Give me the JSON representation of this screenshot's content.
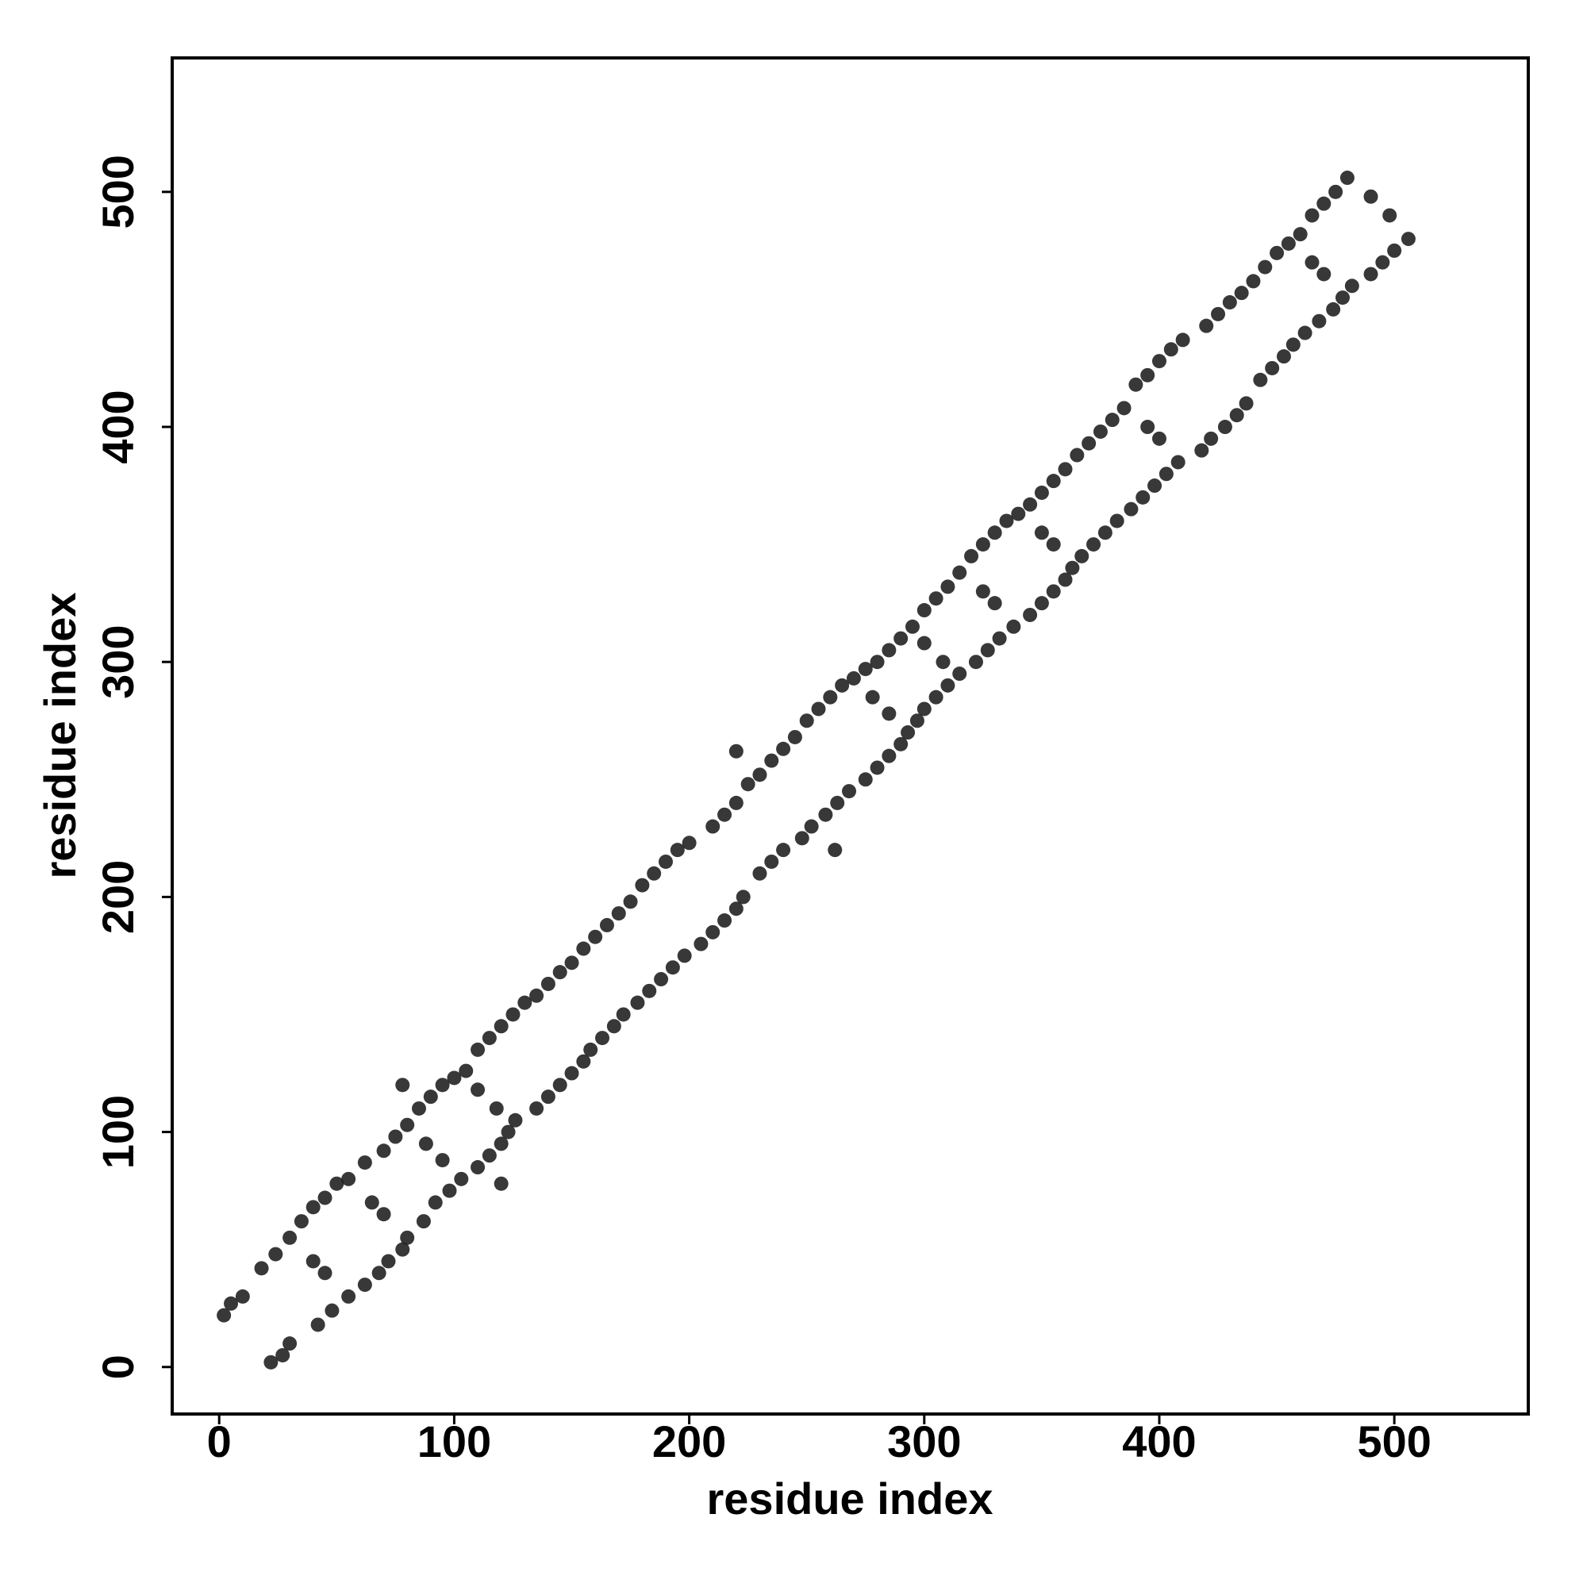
{
  "chart_data": {
    "type": "scatter",
    "xlabel": "residue index",
    "ylabel": "residue index",
    "color": "#1c1c1c",
    "xlim": [
      -20,
      557
    ],
    "ylim": [
      -20,
      557
    ],
    "xticks": [
      0,
      100,
      200,
      300,
      400,
      500
    ],
    "yticks": [
      0,
      100,
      200,
      300,
      400,
      500
    ],
    "x": [
      2,
      5,
      10,
      18,
      24,
      30,
      35,
      40,
      45,
      50,
      55,
      62,
      70,
      75,
      80,
      85,
      90,
      95,
      100,
      105,
      110,
      115,
      120,
      125,
      130,
      135,
      140,
      145,
      150,
      155,
      160,
      165,
      170,
      175,
      180,
      185,
      190,
      195,
      200,
      210,
      215,
      220,
      225,
      230,
      235,
      240,
      245,
      250,
      255,
      260,
      265,
      270,
      275,
      280,
      285,
      290,
      295,
      300,
      305,
      310,
      315,
      320,
      325,
      330,
      335,
      340,
      345,
      350,
      355,
      360,
      365,
      370,
      375,
      380,
      385,
      390,
      395,
      400,
      405,
      410,
      420,
      425,
      430,
      435,
      440,
      445,
      450,
      455,
      460,
      465,
      470,
      475,
      480,
      22,
      27,
      30,
      42,
      48,
      55,
      62,
      68,
      72,
      78,
      80,
      87,
      92,
      98,
      103,
      110,
      115,
      120,
      123,
      126,
      135,
      140,
      145,
      150,
      155,
      158,
      163,
      168,
      172,
      178,
      183,
      188,
      193,
      198,
      205,
      210,
      215,
      220,
      223,
      230,
      235,
      240,
      248,
      252,
      258,
      263,
      268,
      275,
      280,
      285,
      290,
      293,
      297,
      300,
      305,
      310,
      315,
      322,
      327,
      332,
      338,
      345,
      350,
      355,
      360,
      363,
      367,
      372,
      377,
      382,
      388,
      393,
      398,
      403,
      408,
      418,
      422,
      428,
      433,
      437,
      443,
      448,
      453,
      457,
      462,
      468,
      474,
      478,
      482,
      490,
      495,
      500,
      506,
      78,
      120,
      40,
      45,
      65,
      70,
      88,
      95,
      110,
      118,
      220,
      262,
      278,
      285,
      300,
      308,
      325,
      330,
      350,
      355,
      395,
      400,
      465,
      470,
      490,
      498
    ],
    "values": [
      22,
      27,
      30,
      42,
      48,
      55,
      62,
      68,
      72,
      78,
      80,
      87,
      92,
      98,
      103,
      110,
      115,
      120,
      123,
      126,
      135,
      140,
      145,
      150,
      155,
      158,
      163,
      168,
      172,
      178,
      183,
      188,
      193,
      198,
      205,
      210,
      215,
      220,
      223,
      230,
      235,
      240,
      248,
      252,
      258,
      263,
      268,
      275,
      280,
      285,
      290,
      293,
      297,
      300,
      305,
      310,
      315,
      322,
      327,
      332,
      338,
      345,
      350,
      355,
      360,
      363,
      367,
      372,
      377,
      382,
      388,
      393,
      398,
      403,
      408,
      418,
      422,
      428,
      433,
      437,
      443,
      448,
      453,
      457,
      462,
      468,
      474,
      478,
      482,
      490,
      495,
      500,
      506,
      2,
      5,
      10,
      18,
      24,
      30,
      35,
      40,
      45,
      50,
      55,
      62,
      70,
      75,
      80,
      85,
      90,
      95,
      100,
      105,
      110,
      115,
      120,
      125,
      130,
      135,
      140,
      145,
      150,
      155,
      160,
      165,
      170,
      175,
      180,
      185,
      190,
      195,
      200,
      210,
      215,
      220,
      225,
      230,
      235,
      240,
      245,
      250,
      255,
      260,
      265,
      270,
      275,
      280,
      285,
      290,
      295,
      300,
      305,
      310,
      315,
      320,
      325,
      330,
      335,
      340,
      345,
      350,
      355,
      360,
      365,
      370,
      375,
      380,
      385,
      390,
      395,
      400,
      405,
      410,
      420,
      425,
      430,
      435,
      440,
      445,
      450,
      455,
      460,
      465,
      470,
      475,
      480,
      120,
      78,
      45,
      40,
      70,
      65,
      95,
      88,
      118,
      110,
      262,
      220,
      285,
      278,
      308,
      300,
      330,
      325,
      355,
      350,
      400,
      395,
      470,
      465,
      498,
      490
    ]
  }
}
